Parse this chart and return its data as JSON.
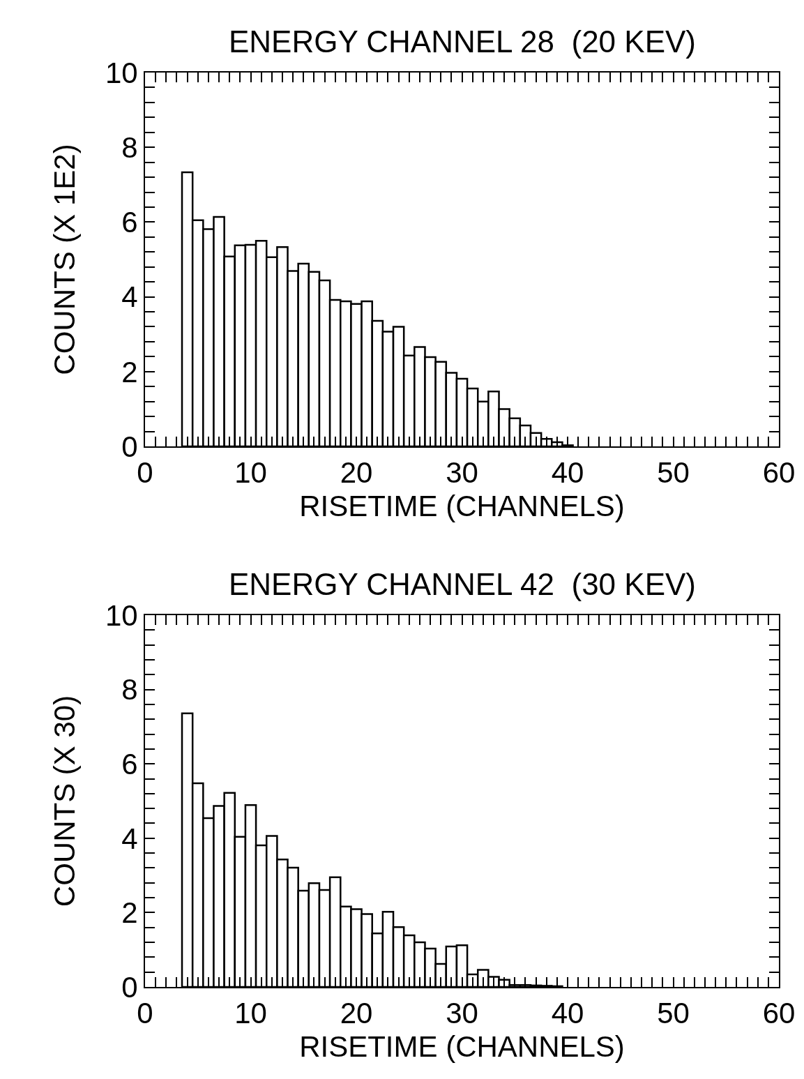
{
  "chart_data": [
    {
      "type": "histogram",
      "title": "ENERGY CHANNEL 28  (20 KEV)",
      "xlabel": "RISETIME (CHANNELS)",
      "ylabel": "COUNTS (X 1E2)",
      "color": "#000000",
      "bins": [
        3.5,
        4.5,
        5.5,
        6.5,
        7.5,
        8.5,
        9.5,
        10.5,
        11.5,
        12.5,
        13.5,
        14.5,
        15.5,
        16.5,
        17.5,
        18.5,
        19.5,
        20.5,
        21.5,
        22.5,
        23.5,
        24.5,
        25.5,
        26.5,
        27.5,
        28.5,
        29.5,
        30.5,
        31.5,
        32.5,
        33.5,
        34.5,
        35.5,
        36.5,
        37.5,
        38.5,
        39.5,
        40.5
      ],
      "values": [
        7.33,
        6.05,
        5.81,
        6.14,
        5.08,
        5.38,
        5.39,
        5.5,
        5.06,
        5.33,
        4.69,
        4.89,
        4.67,
        4.44,
        3.92,
        3.88,
        3.81,
        3.88,
        3.36,
        3.07,
        3.2,
        2.43,
        2.66,
        2.39,
        2.26,
        1.97,
        1.81,
        1.55,
        1.2,
        1.47,
        1.0,
        0.75,
        0.56,
        0.36,
        0.2,
        0.11,
        0.03
      ],
      "xlim": [
        0,
        60
      ],
      "ylim": [
        0,
        10
      ],
      "xticks": [
        0,
        {
          "value": 1,
          "label": null
        },
        {
          "value": 2,
          "label": null
        },
        {
          "value": 3,
          "label": null
        },
        {
          "value": 4,
          "label": null
        },
        {
          "value": 5,
          "label": null
        },
        {
          "value": 6,
          "label": null
        },
        {
          "value": 7,
          "label": null
        },
        {
          "value": 8,
          "label": null
        },
        {
          "value": 9,
          "label": null
        },
        10,
        {
          "value": 11,
          "label": null
        },
        {
          "value": 12,
          "label": null
        },
        {
          "value": 13,
          "label": null
        },
        {
          "value": 14,
          "label": null
        },
        {
          "value": 15,
          "label": null
        },
        {
          "value": 16,
          "label": null
        },
        {
          "value": 17,
          "label": null
        },
        {
          "value": 18,
          "label": null
        },
        {
          "value": 19,
          "label": null
        },
        20,
        {
          "value": 21,
          "label": null
        },
        {
          "value": 22,
          "label": null
        },
        {
          "value": 23,
          "label": null
        },
        {
          "value": 24,
          "label": null
        },
        {
          "value": 25,
          "label": null
        },
        {
          "value": 26,
          "label": null
        },
        {
          "value": 27,
          "label": null
        },
        {
          "value": 28,
          "label": null
        },
        {
          "value": 29,
          "label": null
        },
        30,
        {
          "value": 31,
          "label": null
        },
        {
          "value": 32,
          "label": null
        },
        {
          "value": 33,
          "label": null
        },
        {
          "value": 34,
          "label": null
        },
        {
          "value": 35,
          "label": null
        },
        {
          "value": 36,
          "label": null
        },
        {
          "value": 37,
          "label": null
        },
        {
          "value": 38,
          "label": null
        },
        {
          "value": 39,
          "label": null
        },
        40,
        {
          "value": 41,
          "label": null
        },
        {
          "value": 42,
          "label": null
        },
        {
          "value": 43,
          "label": null
        },
        {
          "value": 44,
          "label": null
        },
        {
          "value": 45,
          "label": null
        },
        {
          "value": 46,
          "label": null
        },
        {
          "value": 47,
          "label": null
        },
        {
          "value": 48,
          "label": null
        },
        {
          "value": 49,
          "label": null
        },
        50,
        {
          "value": 51,
          "label": null
        },
        {
          "value": 52,
          "label": null
        },
        {
          "value": 53,
          "label": null
        },
        {
          "value": 54,
          "label": null
        },
        {
          "value": 55,
          "label": null
        },
        {
          "value": 56,
          "label": null
        },
        {
          "value": 57,
          "label": null
        },
        {
          "value": 58,
          "label": null
        },
        {
          "value": 59,
          "label": null
        },
        60
      ],
      "yticks": [
        0,
        {
          "value": 0.4,
          "label": null
        },
        {
          "value": 0.8,
          "label": null
        },
        {
          "value": 1.2,
          "label": null
        },
        {
          "value": 1.6,
          "label": null
        },
        2,
        {
          "value": 2.4,
          "label": null
        },
        {
          "value": 2.8,
          "label": null
        },
        {
          "value": 3.2,
          "label": null
        },
        {
          "value": 3.6,
          "label": null
        },
        4,
        {
          "value": 4.4,
          "label": null
        },
        {
          "value": 4.8,
          "label": null
        },
        {
          "value": 5.2,
          "label": null
        },
        {
          "value": 5.6,
          "label": null
        },
        6,
        {
          "value": 6.4,
          "label": null
        },
        {
          "value": 6.8,
          "label": null
        },
        {
          "value": 7.2,
          "label": null
        },
        {
          "value": 7.6,
          "label": null
        },
        8,
        {
          "value": 8.4,
          "label": null
        },
        {
          "value": 8.8,
          "label": null
        },
        {
          "value": 9.2,
          "label": null
        },
        {
          "value": 9.6,
          "label": null
        },
        10
      ]
    },
    {
      "type": "histogram",
      "title": "ENERGY CHANNEL 42  (30 KEV)",
      "xlabel": "RISETIME (CHANNELS)",
      "ylabel": "COUNTS (X 30)",
      "color": "#000000",
      "bins": [
        3.5,
        4.5,
        5.5,
        6.5,
        7.5,
        8.5,
        9.5,
        10.5,
        11.5,
        12.5,
        13.5,
        14.5,
        15.5,
        16.5,
        17.5,
        18.5,
        19.5,
        20.5,
        21.5,
        22.5,
        23.5,
        24.5,
        25.5,
        26.5,
        27.5,
        28.5,
        29.5,
        30.5,
        31.5,
        32.5,
        33.5,
        34.5,
        35.5,
        36.5,
        37.5,
        38.5,
        39.5
      ],
      "values": [
        7.36,
        5.48,
        4.54,
        4.87,
        5.22,
        4.04,
        4.89,
        3.81,
        4.06,
        3.43,
        3.21,
        2.59,
        2.79,
        2.61,
        2.95,
        2.16,
        2.09,
        1.96,
        1.44,
        2.02,
        1.61,
        1.39,
        1.2,
        1.03,
        0.62,
        1.09,
        1.12,
        0.34,
        0.46,
        0.27,
        0.19,
        0.05,
        0.05,
        0.04,
        0.03,
        0.02
      ],
      "xlim": [
        0,
        60
      ],
      "ylim": [
        0,
        10
      ],
      "xticks": [
        0,
        {
          "value": 1,
          "label": null
        },
        {
          "value": 2,
          "label": null
        },
        {
          "value": 3,
          "label": null
        },
        {
          "value": 4,
          "label": null
        },
        {
          "value": 5,
          "label": null
        },
        {
          "value": 6,
          "label": null
        },
        {
          "value": 7,
          "label": null
        },
        {
          "value": 8,
          "label": null
        },
        {
          "value": 9,
          "label": null
        },
        10,
        {
          "value": 11,
          "label": null
        },
        {
          "value": 12,
          "label": null
        },
        {
          "value": 13,
          "label": null
        },
        {
          "value": 14,
          "label": null
        },
        {
          "value": 15,
          "label": null
        },
        {
          "value": 16,
          "label": null
        },
        {
          "value": 17,
          "label": null
        },
        {
          "value": 18,
          "label": null
        },
        {
          "value": 19,
          "label": null
        },
        20,
        {
          "value": 21,
          "label": null
        },
        {
          "value": 22,
          "label": null
        },
        {
          "value": 23,
          "label": null
        },
        {
          "value": 24,
          "label": null
        },
        {
          "value": 25,
          "label": null
        },
        {
          "value": 26,
          "label": null
        },
        {
          "value": 27,
          "label": null
        },
        {
          "value": 28,
          "label": null
        },
        {
          "value": 29,
          "label": null
        },
        30,
        {
          "value": 31,
          "label": null
        },
        {
          "value": 32,
          "label": null
        },
        {
          "value": 33,
          "label": null
        },
        {
          "value": 34,
          "label": null
        },
        {
          "value": 35,
          "label": null
        },
        {
          "value": 36,
          "label": null
        },
        {
          "value": 37,
          "label": null
        },
        {
          "value": 38,
          "label": null
        },
        {
          "value": 39,
          "label": null
        },
        40,
        {
          "value": 41,
          "label": null
        },
        {
          "value": 42,
          "label": null
        },
        {
          "value": 43,
          "label": null
        },
        {
          "value": 44,
          "label": null
        },
        {
          "value": 45,
          "label": null
        },
        {
          "value": 46,
          "label": null
        },
        {
          "value": 47,
          "label": null
        },
        {
          "value": 48,
          "label": null
        },
        {
          "value": 49,
          "label": null
        },
        50,
        {
          "value": 51,
          "label": null
        },
        {
          "value": 52,
          "label": null
        },
        {
          "value": 53,
          "label": null
        },
        {
          "value": 54,
          "label": null
        },
        {
          "value": 55,
          "label": null
        },
        {
          "value": 56,
          "label": null
        },
        {
          "value": 57,
          "label": null
        },
        {
          "value": 58,
          "label": null
        },
        {
          "value": 59,
          "label": null
        },
        60
      ],
      "yticks": [
        0,
        {
          "value": 0.4,
          "label": null
        },
        {
          "value": 0.8,
          "label": null
        },
        {
          "value": 1.2,
          "label": null
        },
        {
          "value": 1.6,
          "label": null
        },
        2,
        {
          "value": 2.4,
          "label": null
        },
        {
          "value": 2.8,
          "label": null
        },
        {
          "value": 3.2,
          "label": null
        },
        {
          "value": 3.6,
          "label": null
        },
        4,
        {
          "value": 4.4,
          "label": null
        },
        {
          "value": 4.8,
          "label": null
        },
        {
          "value": 5.2,
          "label": null
        },
        {
          "value": 5.6,
          "label": null
        },
        6,
        {
          "value": 6.4,
          "label": null
        },
        {
          "value": 6.8,
          "label": null
        },
        {
          "value": 7.2,
          "label": null
        },
        {
          "value": 7.6,
          "label": null
        },
        8,
        {
          "value": 8.4,
          "label": null
        },
        {
          "value": 8.8,
          "label": null
        },
        {
          "value": 9.2,
          "label": null
        },
        {
          "value": 9.6,
          "label": null
        },
        10
      ]
    }
  ]
}
